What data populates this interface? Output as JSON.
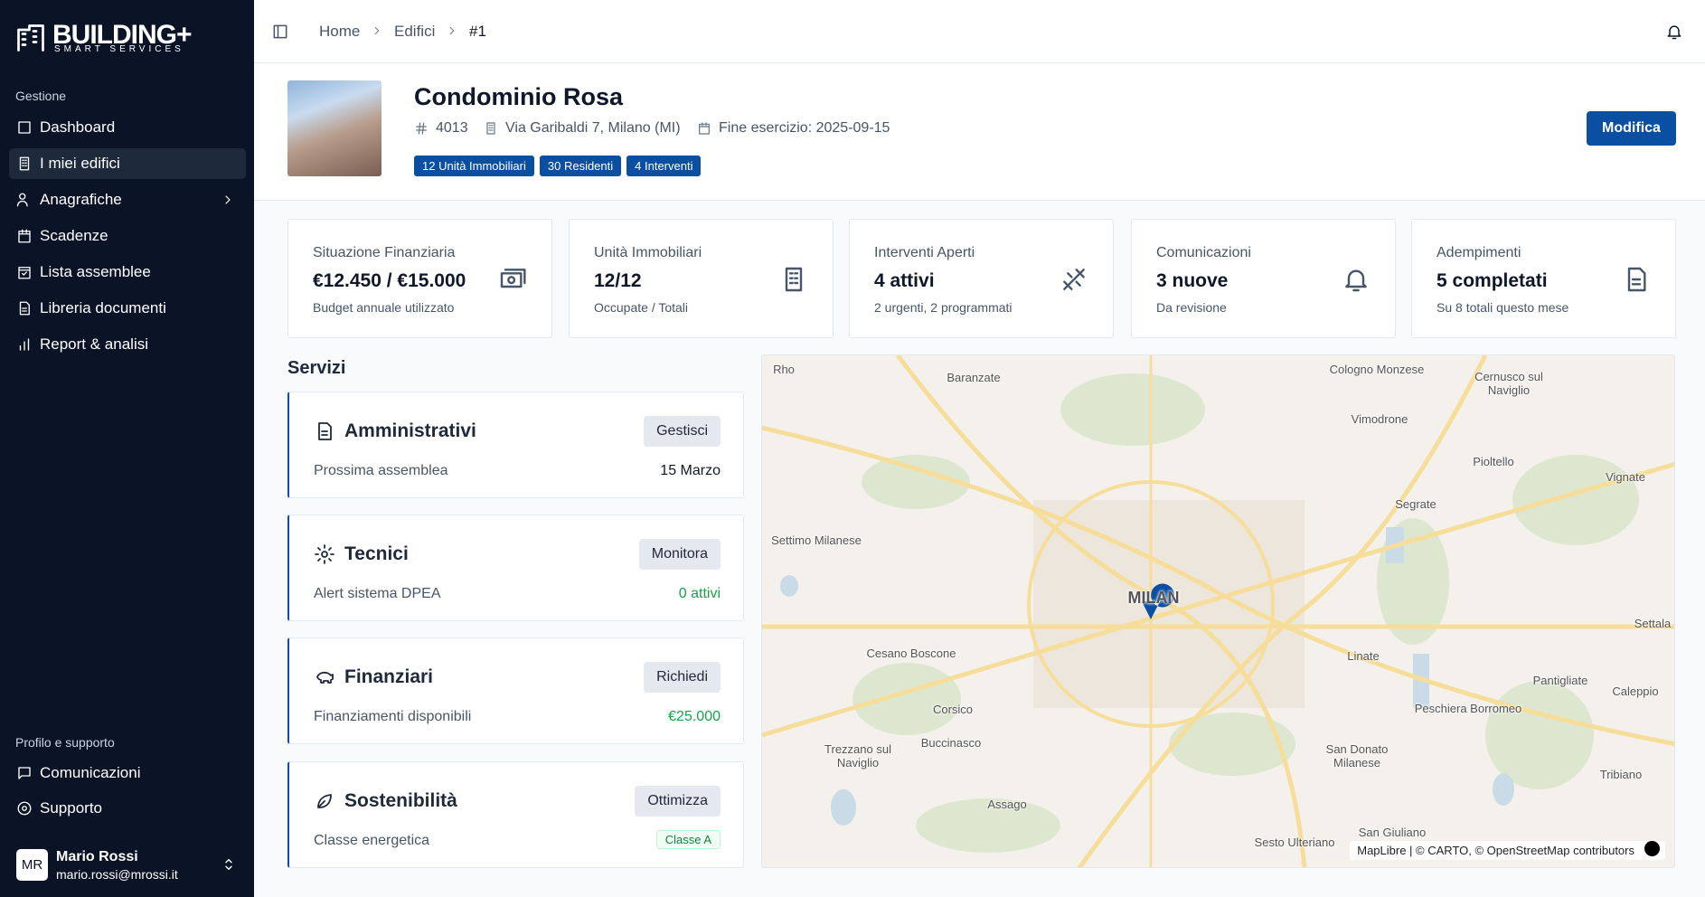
{
  "sidebar": {
    "brand": "BUILDING+",
    "brand_sub": "SMART SERVICES",
    "section_main": "Gestione",
    "nav": [
      "Dashboard",
      "I miei edifici",
      "Anagrafiche",
      "Scadenze",
      "Lista assemblee",
      "Libreria documenti",
      "Report & analisi"
    ],
    "section_support": "Profilo e supporto",
    "support_nav": [
      "Comunicazioni",
      "Supporto"
    ],
    "user": {
      "initials": "MR",
      "name": "Mario Rossi",
      "email": "mario.rossi@mrossi.it"
    }
  },
  "breadcrumb": [
    "Home",
    "Edifici",
    "#1"
  ],
  "building": {
    "name": "Condominio Rosa",
    "code": "4013",
    "address": "Via Garibaldi 7, Milano (MI)",
    "fiscal_end": "Fine esercizio: 2025-09-15",
    "badges": [
      "12 Unità Immobiliari",
      "30 Residenti",
      "4 Interventi"
    ],
    "action": "Modifica"
  },
  "stats": [
    {
      "label": "Situazione Finanziaria",
      "value": "€12.450 / €15.000",
      "note": "Budget annuale utilizzato"
    },
    {
      "label": "Unità Immobiliari",
      "value": "12/12",
      "note": "Occupate / Totali"
    },
    {
      "label": "Interventi Aperti",
      "value": "4 attivi",
      "note": "2 urgenti, 2 programmati"
    },
    {
      "label": "Comunicazioni",
      "value": "3 nuove",
      "note": "Da revisione"
    },
    {
      "label": "Adempimenti",
      "value": "5 completati",
      "note": "Su 8 totali questo mese"
    }
  ],
  "services": {
    "title": "Servizi",
    "items": [
      {
        "name": "Amministrativi",
        "action": "Gestisci",
        "detail": "Prossima assemblea",
        "status": "15 Marzo"
      },
      {
        "name": "Tecnici",
        "action": "Monitora",
        "detail": "Alert sistema DPEA",
        "status": "0 attivi"
      },
      {
        "name": "Finanziari",
        "action": "Richiedi",
        "detail": "Finanziamenti disponibili",
        "status": "€25.000"
      },
      {
        "name": "Sostenibilità",
        "action": "Ottimizza",
        "detail": "Classe energetica",
        "status": "Classe A"
      }
    ]
  },
  "map": {
    "labels": [
      "Rho",
      "Baranzate",
      "Cologno Monzese",
      "Cernusco sul Naviglio",
      "Vimodrone",
      "Pioltello",
      "Vignate",
      "Segrate",
      "Settimo Milanese",
      "MILAN",
      "Settala",
      "Cesano Boscone",
      "Linate",
      "Pantigliate",
      "Caleppio",
      "Corsico",
      "Peschiera Borromeo",
      "Buccinasco",
      "Trezzano sul Naviglio",
      "San Donato Milanese",
      "Tribiano",
      "Assago",
      "Sesto Ulteriano",
      "San Giuliano"
    ],
    "attribution": "MapLibre | © CARTO, © OpenStreetMap contributors"
  }
}
